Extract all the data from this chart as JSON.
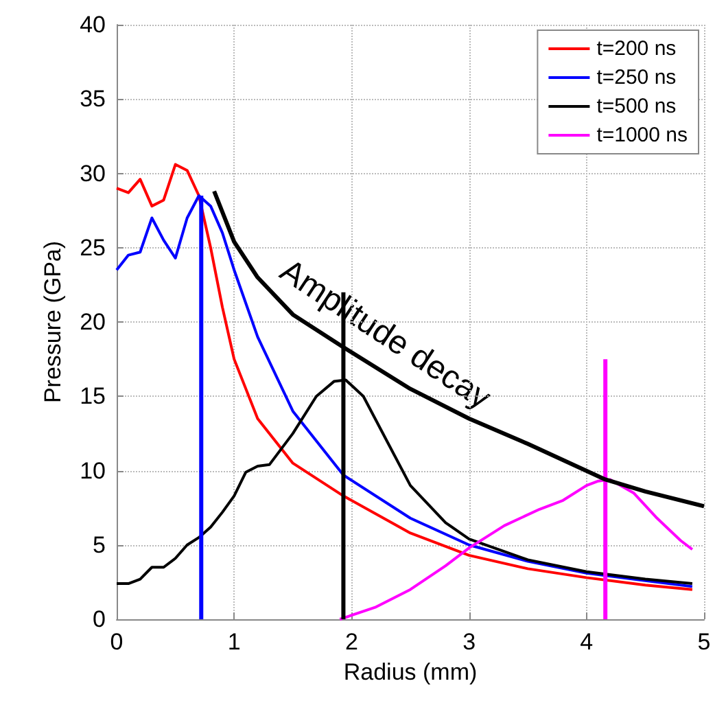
{
  "chart_data": {
    "type": "line",
    "xlabel": "Radius (mm)",
    "ylabel": "Pressure (GPa)",
    "xlim": [
      0,
      5
    ],
    "ylim": [
      0,
      40
    ],
    "xticks": [
      0,
      1,
      2,
      3,
      4,
      5
    ],
    "yticks": [
      0,
      5,
      10,
      15,
      20,
      25,
      30,
      35,
      40
    ],
    "grid": true,
    "legend": "top right",
    "marker": "none",
    "line_style": "solid",
    "annotations": [
      "Amplitude decay"
    ],
    "series": [
      {
        "name": "t=200 ns",
        "color": "#ff0000",
        "x": [
          0,
          0.1,
          0.2,
          0.3,
          0.4,
          0.5,
          0.6,
          0.7,
          0.8,
          0.9,
          1.0,
          1.2,
          1.5,
          1.93,
          2.5,
          3,
          3.5,
          4,
          4.5,
          4.9
        ],
        "values": [
          29,
          28.7,
          29.6,
          27.8,
          28.2,
          30.6,
          30.2,
          28.5,
          25,
          21,
          17.5,
          13.5,
          10.5,
          8.3,
          5.8,
          4.3,
          3.4,
          2.8,
          2.3,
          2.0
        ]
      },
      {
        "name": "t=250 ns",
        "color": "#0000ff",
        "x": [
          0,
          0.1,
          0.2,
          0.3,
          0.4,
          0.5,
          0.6,
          0.7,
          0.8,
          0.9,
          1.0,
          1.2,
          1.5,
          1.93,
          2.5,
          3,
          3.5,
          4,
          4.5,
          4.9
        ],
        "values": [
          23.5,
          24.5,
          24.7,
          27,
          25.5,
          24.3,
          27,
          28.5,
          27.8,
          26,
          23.5,
          19,
          14,
          9.7,
          6.8,
          5,
          3.9,
          3.1,
          2.6,
          2.2
        ]
      },
      {
        "name": "t=500 ns",
        "color": "#000000",
        "x": [
          0,
          0.1,
          0.2,
          0.3,
          0.4,
          0.5,
          0.6,
          0.7,
          0.8,
          0.9,
          1.0,
          1.1,
          1.2,
          1.3,
          1.5,
          1.7,
          1.85,
          1.95,
          2.1,
          2.3,
          2.5,
          2.8,
          3,
          3.5,
          4,
          4.5,
          4.9
        ],
        "values": [
          2.4,
          2.4,
          2.7,
          3.5,
          3.5,
          4.1,
          5,
          5.5,
          6.2,
          7.2,
          8.3,
          9.9,
          10.3,
          10.4,
          12.5,
          15,
          16,
          16.1,
          15,
          12,
          9,
          6.5,
          5.4,
          4,
          3.2,
          2.7,
          2.4
        ]
      },
      {
        "name": "t=1000 ns",
        "color": "#ff00ff",
        "x": [
          1.9,
          2.2,
          2.5,
          2.8,
          3,
          3.3,
          3.6,
          3.8,
          4.0,
          4.1,
          4.2,
          4.4,
          4.6,
          4.8,
          4.9
        ],
        "values": [
          0,
          0.8,
          2,
          3.6,
          4.8,
          6.3,
          7.4,
          8,
          9,
          9.3,
          9.4,
          8.5,
          6.8,
          5.3,
          4.7
        ]
      },
      {
        "color": "#0000ff",
        "x": [
          0.72,
          0.72
        ],
        "values": [
          0,
          28.5
        ]
      },
      {
        "color": "#000000",
        "x": [
          1.93,
          1.93
        ],
        "values": [
          0,
          22
        ]
      },
      {
        "color": "#ff00ff",
        "x": [
          4.16,
          4.16
        ],
        "values": [
          0,
          17.5
        ]
      },
      {
        "color": "#000000",
        "x": [
          0.83,
          1.0,
          1.2,
          1.5,
          1.93,
          2.5,
          3,
          3.5,
          4.16,
          4.5,
          5
        ],
        "values": [
          28.8,
          25.4,
          23,
          20.5,
          18.3,
          15.5,
          13.5,
          11.8,
          9.4,
          8.6,
          7.6
        ]
      }
    ]
  }
}
